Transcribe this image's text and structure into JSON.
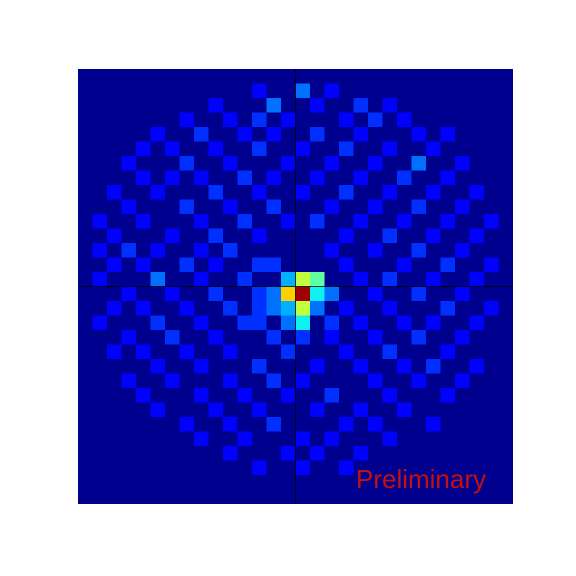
{
  "chart_data": {
    "type": "heatmap",
    "annotation": "Preliminary",
    "xlim": [
      0,
      30
    ],
    "ylim": [
      0,
      30
    ],
    "zlim": [
      0,
      10
    ],
    "colormap": [
      "#00008f",
      "#0000ff",
      "#0030ff",
      "#0070ff",
      "#00b0ff",
      "#10f0ef",
      "#60ff9f",
      "#c0ff40",
      "#ffd000",
      "#ff4000",
      "#a00000"
    ],
    "rows": [
      {
        "y": 1,
        "x": [
          12,
          15,
          17
        ],
        "values": [
          1,
          3,
          1
        ]
      },
      {
        "y": 2,
        "x": [
          9,
          13,
          16,
          19,
          21
        ],
        "values": [
          1,
          3,
          1,
          2,
          1
        ]
      },
      {
        "y": 3,
        "x": [
          7,
          10,
          12,
          14,
          18,
          20,
          22
        ],
        "values": [
          1,
          1,
          2,
          1,
          1,
          2,
          1
        ]
      },
      {
        "y": 4,
        "x": [
          5,
          8,
          11,
          13,
          16,
          19,
          23,
          25
        ],
        "values": [
          1,
          2,
          1,
          1,
          2,
          1,
          1,
          1
        ]
      },
      {
        "y": 5,
        "x": [
          4,
          6,
          9,
          12,
          15,
          18,
          21,
          24
        ],
        "values": [
          1,
          1,
          1,
          2,
          1,
          2,
          1,
          1
        ]
      },
      {
        "y": 6,
        "x": [
          3,
          7,
          10,
          14,
          17,
          20,
          23,
          26
        ],
        "values": [
          1,
          2,
          1,
          1,
          1,
          1,
          3,
          1
        ]
      },
      {
        "y": 7,
        "x": [
          4,
          6,
          8,
          11,
          13,
          16,
          19,
          22,
          25
        ],
        "values": [
          1,
          1,
          1,
          2,
          1,
          1,
          1,
          2,
          1
        ]
      },
      {
        "y": 8,
        "x": [
          2,
          5,
          9,
          12,
          15,
          18,
          21,
          24,
          27
        ],
        "values": [
          1,
          1,
          2,
          1,
          1,
          2,
          1,
          1,
          1
        ]
      },
      {
        "y": 9,
        "x": [
          3,
          7,
          10,
          13,
          17,
          20,
          23,
          26
        ],
        "values": [
          1,
          2,
          1,
          2,
          1,
          1,
          2,
          1
        ]
      },
      {
        "y": 10,
        "x": [
          1,
          4,
          8,
          11,
          14,
          16,
          19,
          22,
          25,
          28
        ],
        "values": [
          1,
          1,
          1,
          2,
          1,
          2,
          1,
          1,
          1,
          1
        ]
      },
      {
        "y": 11,
        "x": [
          2,
          6,
          9,
          12,
          18,
          21,
          24,
          27
        ],
        "values": [
          1,
          1,
          2,
          1,
          1,
          2,
          1,
          1
        ]
      },
      {
        "y": 12,
        "x": [
          1,
          3,
          5,
          8,
          10,
          17,
          20,
          23,
          26
        ],
        "values": [
          1,
          2,
          1,
          1,
          2,
          1,
          1,
          2,
          1
        ]
      },
      {
        "y": 13,
        "x": [
          2,
          4,
          7,
          9,
          12,
          13,
          18,
          22,
          25,
          28
        ],
        "values": [
          1,
          1,
          2,
          1,
          2,
          2,
          1,
          1,
          2,
          1
        ]
      },
      {
        "y": 14,
        "x": [
          1,
          5,
          8,
          11,
          14,
          15,
          16,
          19,
          21,
          24,
          27
        ],
        "values": [
          1,
          3,
          1,
          2,
          4,
          7,
          6,
          1,
          2,
          1,
          1
        ]
      },
      {
        "y": 15,
        "x": [
          3,
          6,
          9,
          12,
          13,
          14,
          15,
          16,
          17,
          20,
          23,
          26
        ],
        "values": [
          1,
          1,
          2,
          2,
          3,
          8,
          10,
          5,
          3,
          1,
          2,
          1
        ]
      },
      {
        "y": 16,
        "x": [
          2,
          4,
          7,
          10,
          12,
          13,
          14,
          15,
          16,
          18,
          21,
          25,
          28
        ],
        "values": [
          1,
          1,
          1,
          2,
          2,
          3,
          4,
          7,
          3,
          1,
          1,
          2,
          1
        ]
      },
      {
        "y": 17,
        "x": [
          1,
          5,
          8,
          11,
          12,
          14,
          15,
          17,
          19,
          22,
          24,
          27
        ],
        "values": [
          1,
          2,
          1,
          2,
          2,
          3,
          5,
          2,
          1,
          1,
          1,
          1
        ]
      },
      {
        "y": 18,
        "x": [
          3,
          6,
          9,
          13,
          15,
          17,
          20,
          23,
          26
        ],
        "values": [
          1,
          2,
          1,
          2,
          2,
          1,
          1,
          2,
          1
        ]
      },
      {
        "y": 19,
        "x": [
          2,
          4,
          7,
          10,
          14,
          18,
          21,
          25
        ],
        "values": [
          1,
          1,
          1,
          1,
          2,
          1,
          2,
          1
        ]
      },
      {
        "y": 20,
        "x": [
          5,
          8,
          12,
          16,
          19,
          22,
          24,
          27
        ],
        "values": [
          1,
          1,
          2,
          1,
          1,
          1,
          2,
          1
        ]
      },
      {
        "y": 21,
        "x": [
          3,
          6,
          10,
          13,
          15,
          20,
          23,
          26
        ],
        "values": [
          1,
          1,
          1,
          2,
          1,
          1,
          1,
          1
        ]
      },
      {
        "y": 22,
        "x": [
          4,
          8,
          11,
          14,
          17,
          21,
          25
        ],
        "values": [
          1,
          1,
          1,
          1,
          2,
          1,
          1
        ]
      },
      {
        "y": 23,
        "x": [
          5,
          9,
          12,
          16,
          19,
          22
        ],
        "values": [
          1,
          1,
          1,
          1,
          1,
          1
        ]
      },
      {
        "y": 24,
        "x": [
          7,
          10,
          13,
          18,
          20,
          24
        ],
        "values": [
          1,
          1,
          2,
          1,
          1,
          1
        ]
      },
      {
        "y": 25,
        "x": [
          8,
          11,
          15,
          17,
          21
        ],
        "values": [
          1,
          1,
          1,
          1,
          1
        ]
      },
      {
        "y": 26,
        "x": [
          10,
          14,
          16,
          19
        ],
        "values": [
          1,
          1,
          1,
          1
        ]
      },
      {
        "y": 27,
        "x": [
          12,
          15,
          18
        ],
        "values": [
          1,
          1,
          1
        ]
      }
    ]
  }
}
